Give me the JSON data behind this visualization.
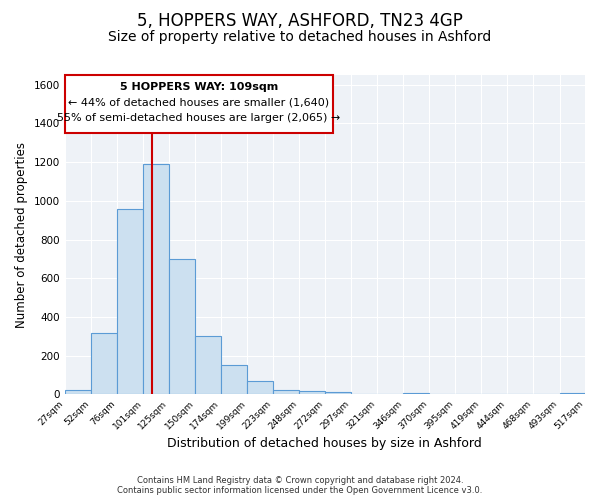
{
  "title": "5, HOPPERS WAY, ASHFORD, TN23 4GP",
  "subtitle": "Size of property relative to detached houses in Ashford",
  "xlabel": "Distribution of detached houses by size in Ashford",
  "ylabel": "Number of detached properties",
  "bar_edges": [
    27,
    52,
    76,
    101,
    125,
    150,
    174,
    199,
    223,
    248,
    272,
    297,
    321,
    346,
    370,
    395,
    419,
    444,
    468,
    493,
    517
  ],
  "bar_heights": [
    25,
    320,
    960,
    1190,
    700,
    300,
    150,
    70,
    25,
    20,
    15,
    5,
    0,
    10,
    0,
    5,
    0,
    0,
    0,
    10
  ],
  "bar_facecolor": "#cce0f0",
  "bar_edgecolor": "#5b9bd5",
  "vline_x": 109,
  "vline_color": "#cc0000",
  "annotation_line1": "5 HOPPERS WAY: 109sqm",
  "annotation_line2": "← 44% of detached houses are smaller (1,640)",
  "annotation_line3": "55% of semi-detached houses are larger (2,065) →",
  "ylim": [
    0,
    1650
  ],
  "yticks": [
    0,
    200,
    400,
    600,
    800,
    1000,
    1200,
    1400,
    1600
  ],
  "background_color": "#ffffff",
  "plot_bg_color": "#eef2f7",
  "grid_color": "#ffffff",
  "footer_line1": "Contains HM Land Registry data © Crown copyright and database right 2024.",
  "footer_line2": "Contains public sector information licensed under the Open Government Licence v3.0.",
  "title_fontsize": 12,
  "subtitle_fontsize": 10,
  "xlabel_fontsize": 9,
  "ylabel_fontsize": 8.5,
  "tick_labels": [
    "27sqm",
    "52sqm",
    "76sqm",
    "101sqm",
    "125sqm",
    "150sqm",
    "174sqm",
    "199sqm",
    "223sqm",
    "248sqm",
    "272sqm",
    "297sqm",
    "321sqm",
    "346sqm",
    "370sqm",
    "395sqm",
    "419sqm",
    "444sqm",
    "468sqm",
    "493sqm",
    "517sqm"
  ]
}
